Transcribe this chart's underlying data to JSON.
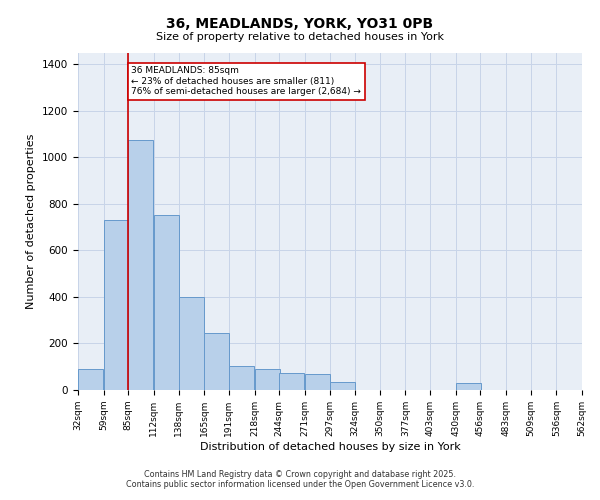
{
  "title1": "36, MEADLANDS, YORK, YO31 0PB",
  "title2": "Size of property relative to detached houses in York",
  "xlabel": "Distribution of detached houses by size in York",
  "ylabel": "Number of detached properties",
  "annotation_line1": "36 MEADLANDS: 85sqm",
  "annotation_line2": "← 23% of detached houses are smaller (811)",
  "annotation_line3": "76% of semi-detached houses are larger (2,684) →",
  "property_size_sqm": 85,
  "bin_starts": [
    32,
    59,
    85,
    112,
    138,
    165,
    191,
    218,
    244,
    271,
    297,
    324,
    350,
    377,
    403,
    430,
    456,
    483,
    509,
    536
  ],
  "bin_width": 27,
  "bar_heights": [
    90,
    730,
    1075,
    750,
    400,
    245,
    105,
    90,
    75,
    70,
    35,
    0,
    0,
    0,
    0,
    30,
    0,
    0,
    0,
    0
  ],
  "bar_color": "#b8d0ea",
  "bar_edgecolor": "#6699cc",
  "red_line_color": "#cc0000",
  "annotation_box_edgecolor": "#cc0000",
  "annotation_box_facecolor": "#ffffff",
  "ylim": [
    0,
    1450
  ],
  "yticks": [
    0,
    200,
    400,
    600,
    800,
    1000,
    1200,
    1400
  ],
  "tick_labels": [
    "32sqm",
    "59sqm",
    "85sqm",
    "112sqm",
    "138sqm",
    "165sqm",
    "191sqm",
    "218sqm",
    "244sqm",
    "271sqm",
    "297sqm",
    "324sqm",
    "350sqm",
    "377sqm",
    "403sqm",
    "430sqm",
    "456sqm",
    "483sqm",
    "509sqm",
    "536sqm",
    "562sqm"
  ],
  "grid_color": "#c8d4e8",
  "bg_color": "#e8eef6",
  "footnote1": "Contains HM Land Registry data © Crown copyright and database right 2025.",
  "footnote2": "Contains public sector information licensed under the Open Government Licence v3.0."
}
